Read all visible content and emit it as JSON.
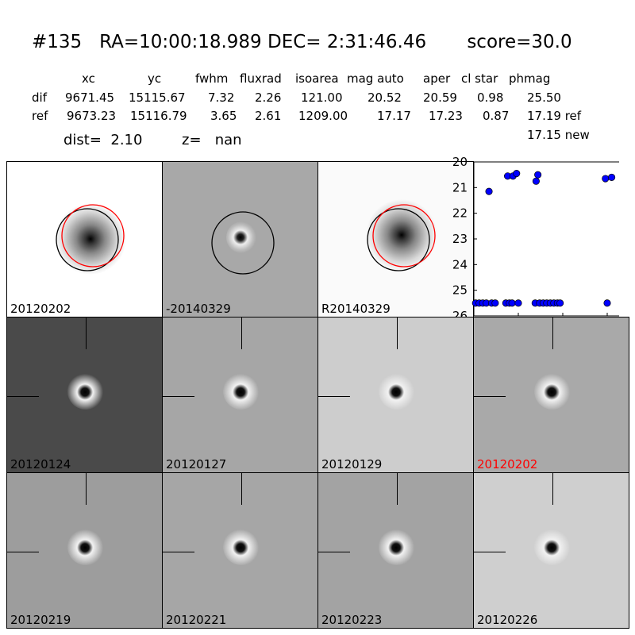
{
  "title": {
    "id": "#135",
    "ra": "RA=10:00:18.989",
    "dec": "DEC= 2:31:46.46",
    "score": "score=30.0"
  },
  "table": {
    "headers": [
      "xc",
      "yc",
      "fwhm",
      "fluxrad",
      "isoarea",
      "mag auto",
      "aper",
      "cl star",
      "phmag"
    ],
    "rows": [
      {
        "label": "dif",
        "values": [
          "9671.45",
          "15115.67",
          "7.32",
          "2.26",
          "121.00",
          "20.52",
          "20.59",
          "0.98",
          "25.50"
        ]
      },
      {
        "label": "ref",
        "values": [
          "9673.23",
          "15116.79",
          "3.65",
          "2.61",
          "1209.00",
          "17.17",
          "17.23",
          "0.87",
          "17.19 ref"
        ]
      }
    ],
    "extra": "17.15 new"
  },
  "dist_line": {
    "dist": "dist=  2.10",
    "z": "z=   nan"
  },
  "top_panels": [
    {
      "label": "20120202",
      "bg": "#ffffff",
      "style": "dark-center"
    },
    {
      "label": "-20140329",
      "bg": "#a8a8a8",
      "style": "dipole"
    },
    {
      "label": "R20140329",
      "bg": "#fafafa",
      "style": "dark-center"
    }
  ],
  "stamp_panels": [
    {
      "label": "20120124",
      "bg": "#4a4a4a",
      "highlight": false
    },
    {
      "label": "20120127",
      "bg": "#a6a6a6",
      "highlight": false
    },
    {
      "label": "20120129",
      "bg": "#cdcdcd",
      "highlight": false
    },
    {
      "label": "20120202",
      "bg": "#a9a9a9",
      "highlight": true
    },
    {
      "label": "20120219",
      "bg": "#9d9d9d",
      "highlight": false
    },
    {
      "label": "20120221",
      "bg": "#a6a6a6",
      "highlight": false
    },
    {
      "label": "20120223",
      "bg": "#a3a3a3",
      "highlight": false
    },
    {
      "label": "20120226",
      "bg": "#cfcfcf",
      "highlight": false
    }
  ],
  "colors": {
    "marker": "#0000ff",
    "circle_red": "#ff0000",
    "highlight_label": "#ff0000"
  },
  "chart_data": {
    "type": "scatter",
    "xlim": [
      -50,
      125
    ],
    "ylim": [
      26,
      20
    ],
    "y_inverted": true,
    "x_ticks": [
      "-50",
      "0",
      "50",
      "100"
    ],
    "y_ticks": [
      "20",
      "21",
      "22",
      "23",
      "24",
      "25",
      "26"
    ],
    "points": [
      {
        "x": -48,
        "y": 25.5
      },
      {
        "x": -44,
        "y": 25.5
      },
      {
        "x": -40,
        "y": 25.5
      },
      {
        "x": -36,
        "y": 25.5
      },
      {
        "x": -33,
        "y": 21.15
      },
      {
        "x": -30,
        "y": 25.5
      },
      {
        "x": -26,
        "y": 25.5
      },
      {
        "x": -14,
        "y": 25.5
      },
      {
        "x": -12,
        "y": 20.55
      },
      {
        "x": -10,
        "y": 25.5
      },
      {
        "x": -7,
        "y": 25.5
      },
      {
        "x": -6,
        "y": 20.55
      },
      {
        "x": -2,
        "y": 20.45
      },
      {
        "x": 0,
        "y": 25.5
      },
      {
        "x": 19,
        "y": 25.5
      },
      {
        "x": 20,
        "y": 20.75
      },
      {
        "x": 22,
        "y": 20.5
      },
      {
        "x": 24,
        "y": 25.5
      },
      {
        "x": 28,
        "y": 25.5
      },
      {
        "x": 32,
        "y": 25.5
      },
      {
        "x": 36,
        "y": 25.5
      },
      {
        "x": 40,
        "y": 25.5
      },
      {
        "x": 44,
        "y": 25.5
      },
      {
        "x": 47,
        "y": 25.5
      },
      {
        "x": 98,
        "y": 20.65
      },
      {
        "x": 100,
        "y": 25.5
      },
      {
        "x": 105,
        "y": 20.6
      }
    ]
  }
}
